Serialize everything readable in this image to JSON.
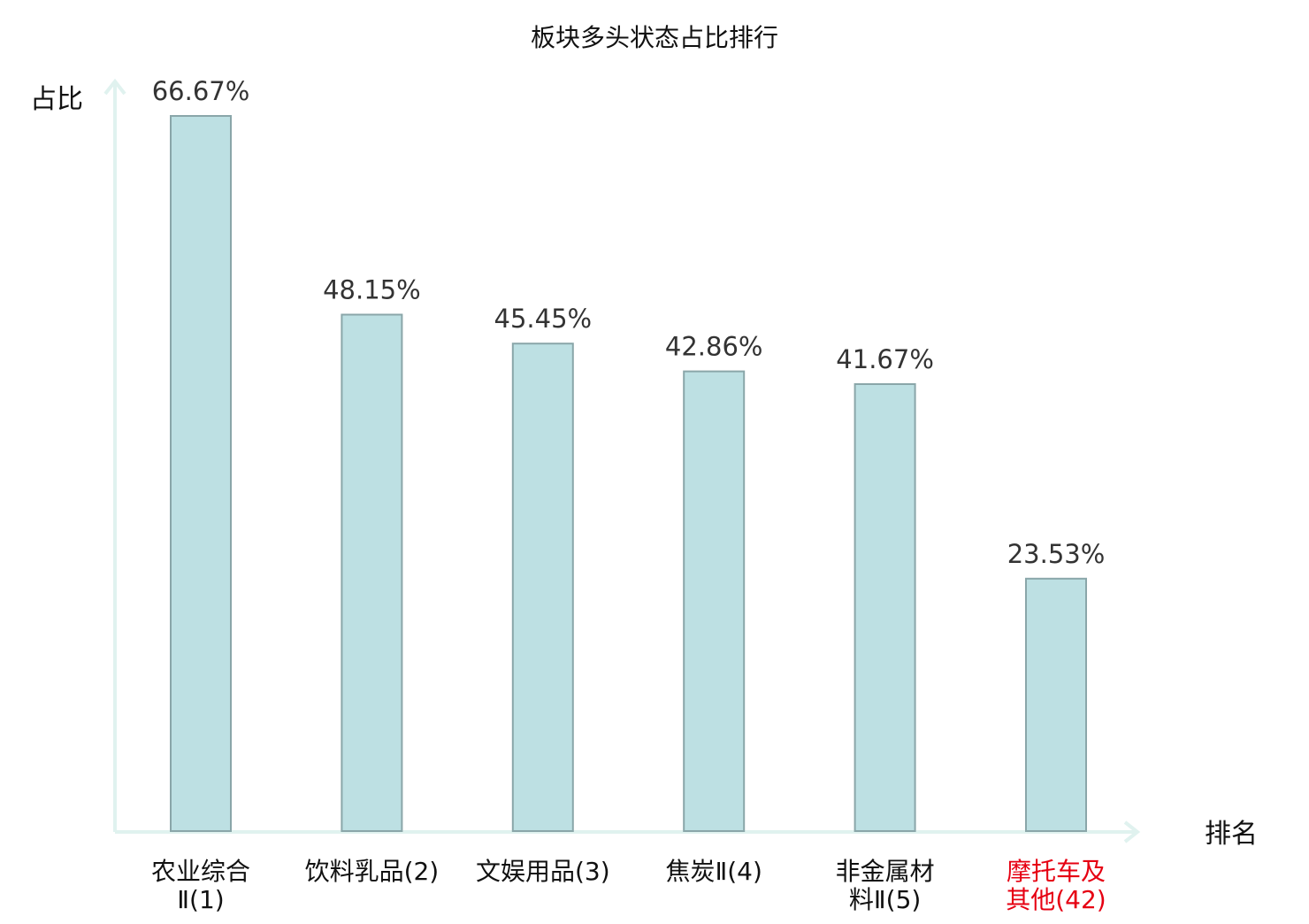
{
  "chart_data": {
    "type": "bar",
    "title": "板块多头状态占比排行",
    "ylabel": "占比",
    "xlabel": "排名",
    "ylim": [
      0,
      70
    ],
    "grid": false,
    "legend": "none",
    "categories": [
      [
        "农业综合",
        "Ⅱ(1)"
      ],
      [
        "饮料乳品(2)"
      ],
      [
        "文娱用品(3)"
      ],
      [
        "焦炭Ⅱ(4)"
      ],
      [
        "非金属材",
        "料Ⅱ(5)"
      ],
      [
        "摩托车及",
        "其他(42)"
      ]
    ],
    "values": [
      66.67,
      48.15,
      45.45,
      42.86,
      41.67,
      23.53
    ],
    "value_labels": [
      "66.67%",
      "48.15%",
      "45.45%",
      "42.86%",
      "41.67%",
      "23.53%"
    ],
    "highlight_index": 5,
    "colors": {
      "bar_fill": "#bde0e3",
      "bar_stroke": "#8aa6a9",
      "axis": "#e0f2ef",
      "highlight_text": "#e60012",
      "value_text": "#333333",
      "text": "#111111"
    }
  }
}
